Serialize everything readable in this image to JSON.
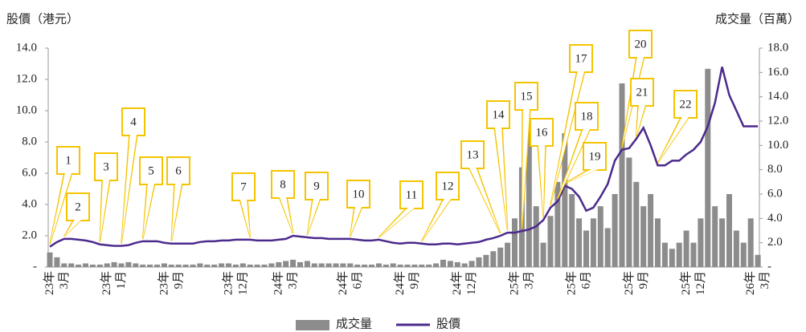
{
  "chart_data": {
    "type": "combo",
    "ylabel": "股價（港元）",
    "y2label": "成交量（百萬）",
    "categories": [
      null,
      "23年3月",
      null,
      null,
      null,
      null,
      null,
      null,
      null,
      "23年1月",
      null,
      null,
      null,
      null,
      null,
      null,
      null,
      "23年9月",
      null,
      null,
      null,
      null,
      null,
      null,
      null,
      null,
      "23年12月",
      null,
      null,
      null,
      null,
      null,
      null,
      "24年3月",
      null,
      null,
      null,
      null,
      null,
      null,
      null,
      null,
      "24年6月",
      null,
      null,
      null,
      null,
      null,
      null,
      null,
      "24年9月",
      null,
      null,
      null,
      null,
      null,
      null,
      null,
      "24年12月",
      null,
      null,
      null,
      null,
      null,
      null,
      null,
      "25年3月",
      null,
      null,
      null,
      null,
      null,
      null,
      null,
      "25年6月",
      null,
      null,
      null,
      null,
      null,
      null,
      null,
      "25年9月",
      null,
      null,
      null,
      null,
      null,
      null,
      null,
      "25年12月",
      null,
      null,
      null,
      null,
      null,
      null,
      null,
      null,
      "26年3月"
    ],
    "series": [
      {
        "name": "成交量",
        "type": "bar",
        "axis": "y2",
        "color": "#8c8c8c",
        "values": [
          1.2,
          0.8,
          0.3,
          0.3,
          0.2,
          0.3,
          0.2,
          0.2,
          0.3,
          0.4,
          0.3,
          0.4,
          0.3,
          0.2,
          0.2,
          0.2,
          0.3,
          0.2,
          0.2,
          0.2,
          0.2,
          0.3,
          0.2,
          0.2,
          0.3,
          0.3,
          0.2,
          0.3,
          0.2,
          0.2,
          0.2,
          0.3,
          0.4,
          0.5,
          0.6,
          0.4,
          0.5,
          0.3,
          0.3,
          0.3,
          0.3,
          0.3,
          0.3,
          0.2,
          0.2,
          0.2,
          0.3,
          0.2,
          0.3,
          0.2,
          0.2,
          0.2,
          0.2,
          0.2,
          0.3,
          0.6,
          0.5,
          0.4,
          0.3,
          0.5,
          0.8,
          1.0,
          1.3,
          1.6,
          2.0,
          4.0,
          8.2,
          11.4,
          5.0,
          2.0,
          4.2,
          7.0,
          11.0,
          6.0,
          4.0,
          3.0,
          4.0,
          5.0,
          3.2,
          6.0,
          15.1,
          9.0,
          7.0,
          5.0,
          6.0,
          4.0,
          2.0,
          1.5,
          2.0,
          3.0,
          2.0,
          4.0,
          16.3,
          5.0,
          4.0,
          6.0,
          3.0,
          2.0,
          4.0,
          1.0
        ]
      },
      {
        "name": "股價",
        "type": "line",
        "color": "#4b2a8c",
        "values": [
          1.3,
          1.6,
          1.8,
          1.8,
          1.75,
          1.7,
          1.6,
          1.45,
          1.4,
          1.35,
          1.35,
          1.4,
          1.55,
          1.65,
          1.65,
          1.65,
          1.55,
          1.5,
          1.5,
          1.5,
          1.5,
          1.6,
          1.65,
          1.65,
          1.7,
          1.7,
          1.75,
          1.75,
          1.75,
          1.7,
          1.7,
          1.7,
          1.75,
          1.8,
          2.0,
          1.95,
          1.9,
          1.85,
          1.85,
          1.8,
          1.8,
          1.8,
          1.8,
          1.75,
          1.7,
          1.7,
          1.75,
          1.65,
          1.55,
          1.5,
          1.55,
          1.55,
          1.5,
          1.45,
          1.45,
          1.5,
          1.5,
          1.45,
          1.5,
          1.55,
          1.6,
          1.75,
          1.85,
          2.0,
          2.2,
          2.2,
          2.3,
          2.4,
          2.6,
          3.0,
          3.8,
          4.2,
          5.2,
          5.0,
          4.5,
          3.6,
          3.8,
          4.5,
          5.3,
          6.8,
          7.5,
          7.6,
          8.2,
          8.9,
          7.8,
          6.5,
          6.5,
          6.8,
          6.8,
          7.2,
          7.5,
          8.0,
          9.0,
          10.5,
          12.8,
          11.0,
          10.0,
          9.0,
          9.0,
          9.0
        ]
      }
    ],
    "ylim": [
      0,
      14
    ],
    "yticks": [
      {
        "value": 0,
        "label": "-"
      },
      {
        "value": 2,
        "label": "2.0"
      },
      {
        "value": 4,
        "label": "4.0"
      },
      {
        "value": 6,
        "label": "6.0"
      },
      {
        "value": 8,
        "label": "8.0"
      },
      {
        "value": 10,
        "label": "10.0"
      },
      {
        "value": 12,
        "label": "12.0"
      },
      {
        "value": 14,
        "label": "14.0"
      }
    ],
    "y2lim": [
      0,
      18
    ],
    "y2ticks": [
      {
        "value": 0,
        "label": "-"
      },
      {
        "value": 2,
        "label": "2.0"
      },
      {
        "value": 4,
        "label": "4.0"
      },
      {
        "value": 6,
        "label": "6.0"
      },
      {
        "value": 8,
        "label": "8.0"
      },
      {
        "value": 10,
        "label": "10.0"
      },
      {
        "value": 12,
        "label": "12.0"
      },
      {
        "value": 14,
        "label": "14.0"
      },
      {
        "value": 16,
        "label": "16.0"
      },
      {
        "value": 18,
        "label": "18.0"
      }
    ],
    "annotations": [
      "1",
      "2",
      "3",
      "4",
      "5",
      "6",
      "7",
      "8",
      "9",
      "10",
      "11",
      "12",
      "13",
      "14",
      "15",
      "16",
      "17",
      "18",
      "19",
      "20",
      "21",
      "22"
    ],
    "legend": "bottom",
    "grid": false
  }
}
